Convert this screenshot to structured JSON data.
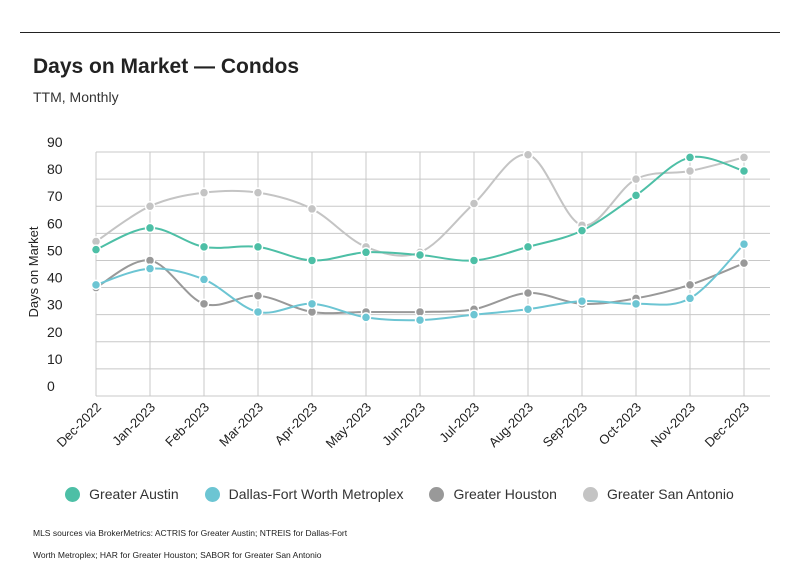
{
  "header": {
    "title": "Days on Market — Condos",
    "subtitle": "TTM, Monthly"
  },
  "footnote": "MLS sources via BrokerMetrics: ACTRIS for Greater Austin; NTREIS for Dallas-Fort Worth Metroplex; HAR for Greater Houston; SABOR for Greater San Antonio",
  "chart_data": {
    "type": "line",
    "title": "Days on Market — Condos",
    "subtitle": "TTM, Monthly",
    "xlabel": "",
    "ylabel": "Days on Market",
    "ylim": [
      0,
      90
    ],
    "yticks": [
      "0",
      "10",
      "20",
      "30",
      "40",
      "50",
      "60",
      "70",
      "80",
      "90"
    ],
    "grid": true,
    "legend": "bottom-center",
    "categories": [
      "Dec-2022",
      "Jan-2023",
      "Feb-2023",
      "Mar-2023",
      "Apr-2023",
      "May-2023",
      "Jun-2023",
      "Jul-2023",
      "Aug-2023",
      "Sep-2023",
      "Oct-2023",
      "Nov-2023",
      "Dec-2023"
    ],
    "series": [
      {
        "name": "Greater Austin",
        "color": "#4dbfa6",
        "values": [
          54,
          62,
          55,
          55,
          50,
          53,
          52,
          50,
          55,
          61,
          74,
          88,
          83
        ]
      },
      {
        "name": "Dallas-Fort Worth Metroplex",
        "color": "#6cc5d3",
        "values": [
          41,
          47,
          43,
          31,
          34,
          29,
          28,
          30,
          32,
          35,
          34,
          36,
          56
        ]
      },
      {
        "name": "Greater Houston",
        "color": "#999999",
        "values": [
          40,
          50,
          34,
          37,
          31,
          31,
          31,
          32,
          38,
          34,
          36,
          41,
          49
        ]
      },
      {
        "name": "Greater San Antonio",
        "color": "#c4c4c4",
        "values": [
          57,
          70,
          75,
          75,
          69,
          55,
          53,
          71,
          89,
          63,
          80,
          83,
          88
        ]
      }
    ]
  }
}
